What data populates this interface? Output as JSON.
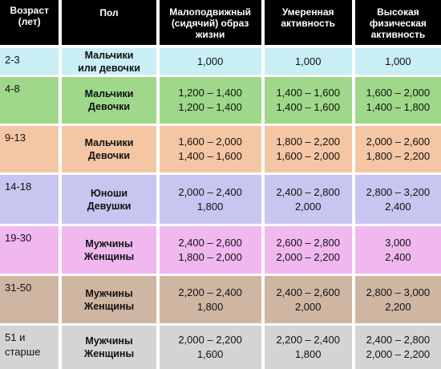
{
  "header": {
    "age": [
      "Возраст",
      "(лет)"
    ],
    "sex": [
      "Пол"
    ],
    "sedentary": [
      "Малоподвижный",
      "(сидячий) образ",
      "жизни"
    ],
    "moderate": [
      "Умеренная",
      "активность"
    ],
    "high": [
      "Высокая",
      "физическая",
      "активность"
    ]
  },
  "colors": {
    "header_bg": "#000000",
    "header_text": "#ffffff",
    "rows": [
      "#c9eef5",
      "#9fd88a",
      "#f5c6a4",
      "#c8c6f0",
      "#f0b8ee",
      "#cfb6a3",
      "#d4d4d4"
    ]
  },
  "rows": [
    {
      "age": [
        "2-3"
      ],
      "sex": [
        "Мальчики",
        "или девочки"
      ],
      "sedentary": [
        "1,000"
      ],
      "moderate": [
        "1,000"
      ],
      "high": [
        "1,000"
      ]
    },
    {
      "age": [
        "4-8"
      ],
      "sex": [
        "Мальчики",
        "Девочки"
      ],
      "sedentary": [
        "1,200 – 1,400",
        "1,200 – 1,400"
      ],
      "moderate": [
        "1,400 – 1,600",
        "1,400 – 1,600"
      ],
      "high": [
        "1,600 – 2,000",
        "1,400 – 1,800"
      ]
    },
    {
      "age": [
        "9-13"
      ],
      "sex": [
        "Мальчики",
        "Девочки"
      ],
      "sedentary": [
        "1,600 – 2,000",
        "1,400 – 1,600"
      ],
      "moderate": [
        "1,800 – 2,200",
        "1,600 – 2,000"
      ],
      "high": [
        "2,000 – 2,600",
        "1,800 – 2,200"
      ]
    },
    {
      "age": [
        "14-18"
      ],
      "sex": [
        "Юноши",
        "Девушки"
      ],
      "sedentary": [
        "2,000 – 2,400",
        "1,800"
      ],
      "moderate": [
        "2,400 – 2,800",
        "2,000"
      ],
      "high": [
        "2,800 – 3,200",
        "2,400"
      ]
    },
    {
      "age": [
        "19-30"
      ],
      "sex": [
        "Мужчины",
        "Женщины"
      ],
      "sedentary": [
        "2,400 – 2,600",
        "1,800 – 2,000"
      ],
      "moderate": [
        "2,600 – 2,800",
        "2,000 – 2,200"
      ],
      "high": [
        "3,000",
        "2,400"
      ]
    },
    {
      "age": [
        "31-50"
      ],
      "sex": [
        "Мужчины",
        "Женщины"
      ],
      "sedentary": [
        "2,200 – 2,400",
        "1,800"
      ],
      "moderate": [
        "2,400 – 2,600",
        "2,000"
      ],
      "high": [
        "2,800 – 3,000",
        "2,200"
      ]
    },
    {
      "age": [
        "51  и",
        "старше"
      ],
      "sex": [
        "Мужчины",
        "Женщины"
      ],
      "sedentary": [
        "2,000 – 2,200",
        "1,600"
      ],
      "moderate": [
        "2,200 – 2,400",
        "1,800"
      ],
      "high": [
        "2,400 – 2,800",
        "2,000 – 2,200"
      ]
    }
  ]
}
